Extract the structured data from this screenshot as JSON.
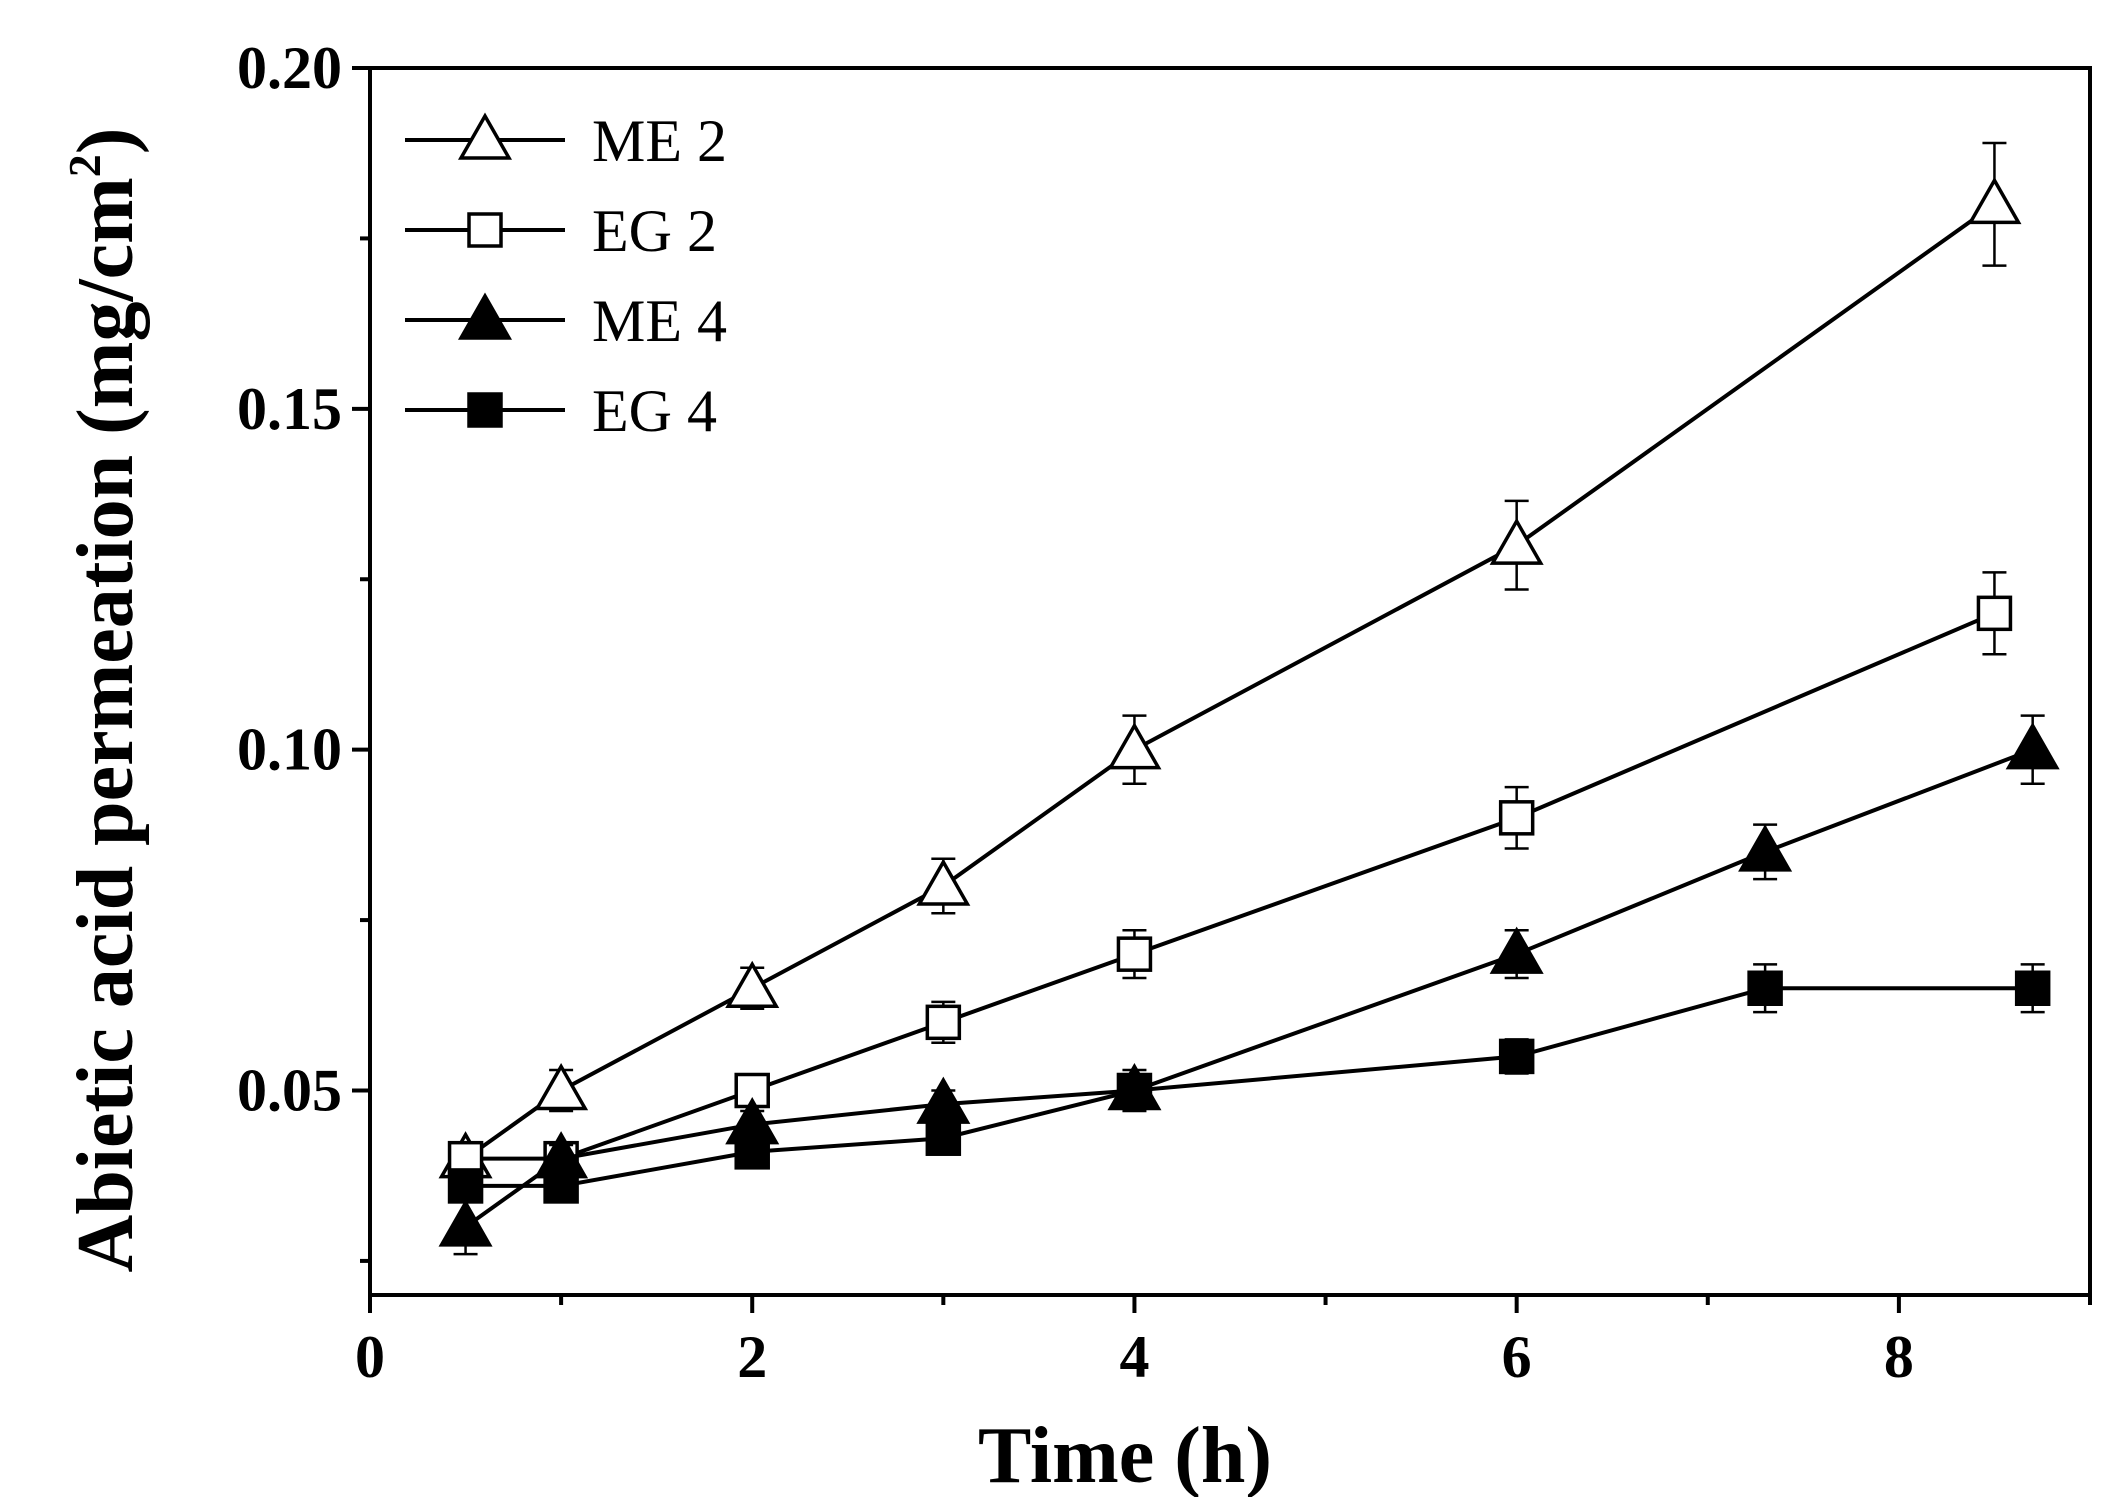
{
  "chart_data": {
    "type": "line",
    "title": "",
    "xlabel": "Time (h)",
    "ylabel": {
      "main": "Abietic acid permeation (mg/cm",
      "superscript": "2",
      "close": ")"
    },
    "xlim": [
      0,
      9
    ],
    "ylim": [
      0.02,
      0.2
    ],
    "xticks": [
      0,
      2,
      4,
      6,
      8
    ],
    "xtick_labels": [
      "0",
      "2",
      "4",
      "6",
      "8"
    ],
    "yticks": [
      0.05,
      0.1,
      0.15,
      0.2
    ],
    "ytick_labels": [
      "0.05",
      "0.10",
      "0.15",
      "0.20"
    ],
    "legend_position": "top-left",
    "series": [
      {
        "name": "ME 2",
        "marker": "triangle",
        "filled": false,
        "color": "#000000",
        "x": [
          0.5,
          1,
          2,
          3,
          4,
          6,
          8.5
        ],
        "y": [
          0.04,
          0.05,
          0.065,
          0.08,
          0.1,
          0.13,
          0.18
        ],
        "err": [
          0.002,
          0.003,
          0.003,
          0.004,
          0.005,
          0.0065,
          0.009
        ]
      },
      {
        "name": "EG 2",
        "marker": "square",
        "filled": false,
        "color": "#000000",
        "x": [
          0.5,
          1,
          2,
          3,
          4,
          6,
          8.5
        ],
        "y": [
          0.04,
          0.04,
          0.05,
          0.06,
          0.07,
          0.09,
          0.12
        ],
        "err": [
          0.002,
          0.002,
          0.002,
          0.003,
          0.0035,
          0.0045,
          0.006
        ]
      },
      {
        "name": "ME 4",
        "marker": "triangle",
        "filled": true,
        "color": "#000000",
        "x": [
          0.5,
          1,
          2,
          3,
          4,
          6,
          7.3,
          8.7
        ],
        "y": [
          0.03,
          0.04,
          0.045,
          0.048,
          0.05,
          0.07,
          0.085,
          0.1
        ],
        "err": [
          0.004,
          0.002,
          0.002,
          0.002,
          0.003,
          0.0035,
          0.004,
          0.005
        ]
      },
      {
        "name": "EG 4",
        "marker": "square",
        "filled": true,
        "color": "#000000",
        "x": [
          0.5,
          1,
          2,
          3,
          4,
          6,
          7.3,
          8.7
        ],
        "y": [
          0.036,
          0.036,
          0.041,
          0.043,
          0.05,
          0.055,
          0.065,
          0.065
        ],
        "err": [
          0.0015,
          0.0015,
          0.0015,
          0.0015,
          0.002,
          0.0025,
          0.0035,
          0.0035
        ]
      }
    ]
  }
}
